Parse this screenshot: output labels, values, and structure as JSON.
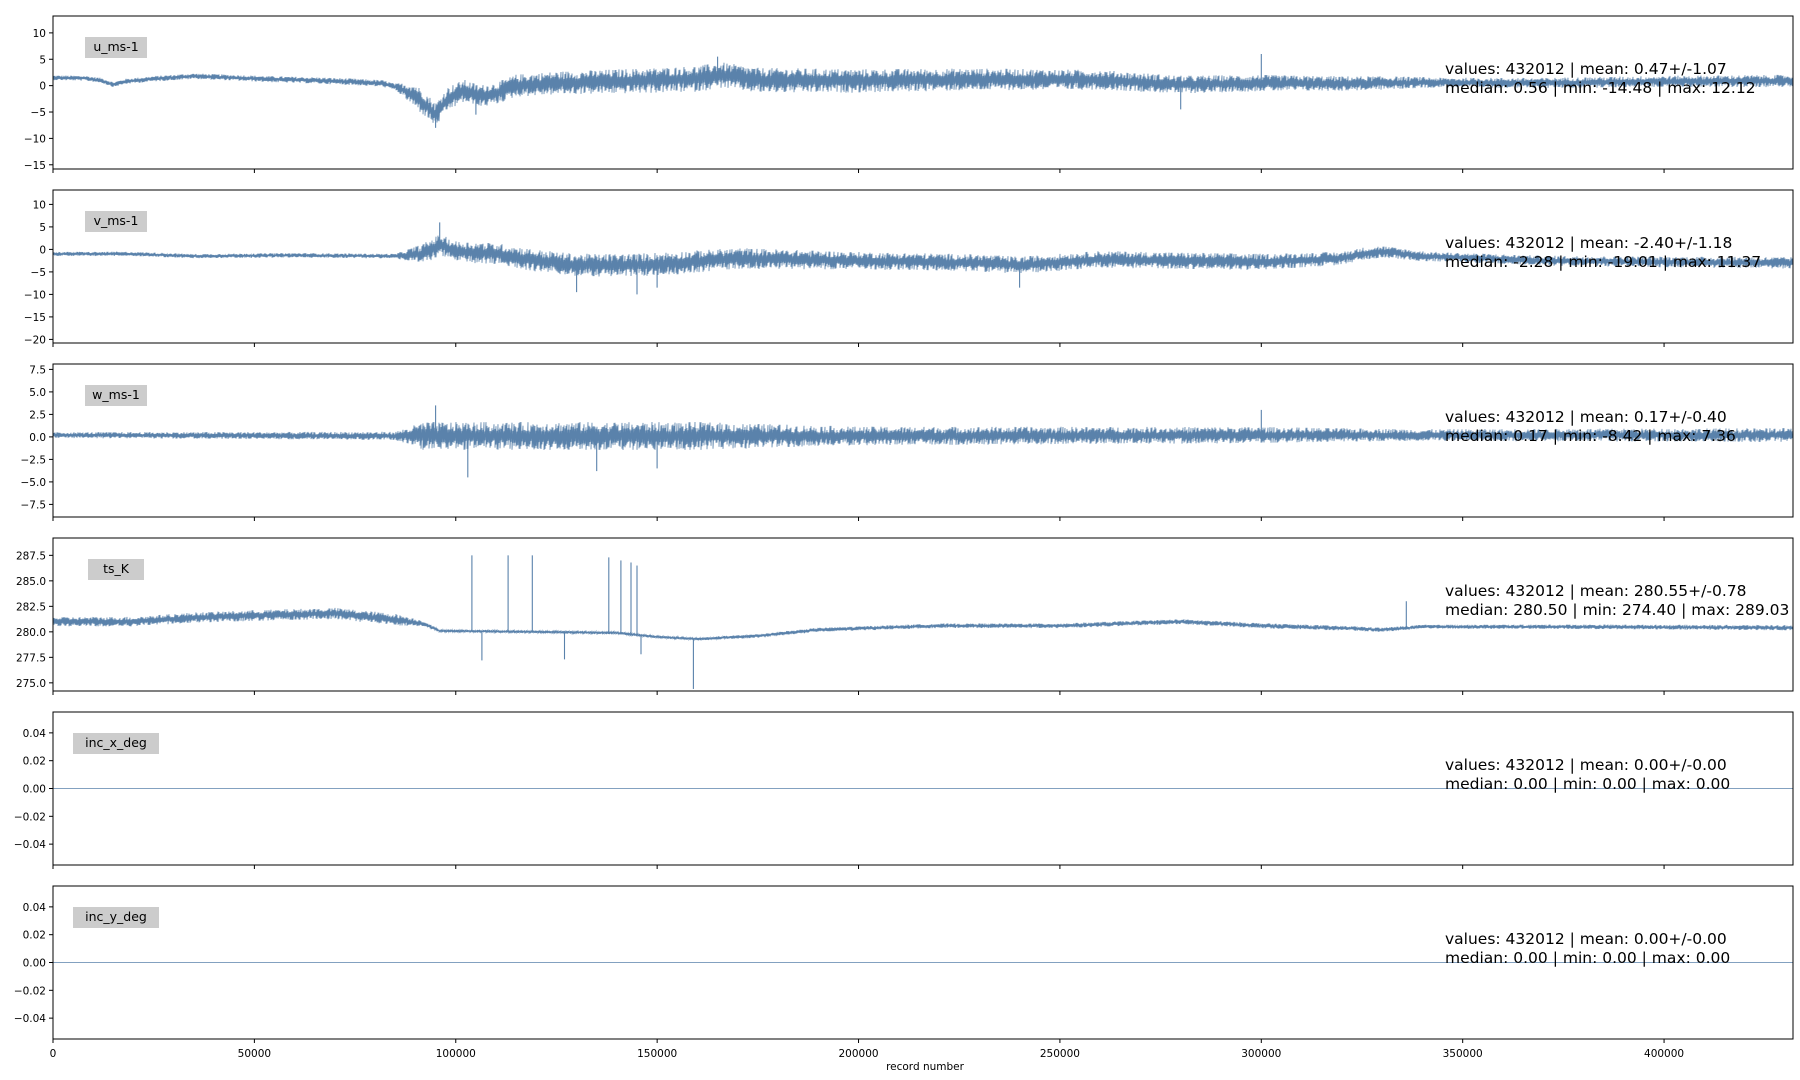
{
  "chart_data": {
    "type": "line",
    "xlabel": "record number",
    "xlim": [
      0,
      432012
    ],
    "x_ticks": [
      0,
      50000,
      100000,
      150000,
      200000,
      250000,
      300000,
      350000,
      400000
    ],
    "line_color": "#5a82ab",
    "label_box_color": "#cccccc",
    "panels": [
      {
        "name": "u_ms-1",
        "ylim": [
          -15.8,
          13.2
        ],
        "y_ticks": [
          10,
          5,
          0,
          -5,
          -10,
          -15
        ],
        "y_tick_labels": [
          "10",
          "5",
          "0",
          "−5",
          "−10",
          "−15"
        ],
        "stats_line1": "values: 432012 | mean: 0.47+/-1.07",
        "stats_line2": "median: 0.56 | min: -14.48 | max: 12.12",
        "series": [
          [
            0,
            1.5
          ],
          [
            8000,
            1.4
          ],
          [
            12000,
            1.0
          ],
          [
            15000,
            0.2
          ],
          [
            18000,
            0.8
          ],
          [
            25000,
            1.3
          ],
          [
            35000,
            1.8
          ],
          [
            45000,
            1.5
          ],
          [
            55000,
            1.2
          ],
          [
            65000,
            1.0
          ],
          [
            75000,
            0.7
          ],
          [
            82000,
            0.4
          ],
          [
            86000,
            -0.5
          ],
          [
            90000,
            -2.0
          ],
          [
            93000,
            -4.0
          ],
          [
            95000,
            -5.5
          ],
          [
            98000,
            -2.5
          ],
          [
            102000,
            -1.0
          ],
          [
            106000,
            -2.0
          ],
          [
            110000,
            -1.5
          ],
          [
            115000,
            0.0
          ],
          [
            125000,
            0.5
          ],
          [
            140000,
            0.8
          ],
          [
            150000,
            1.0
          ],
          [
            160000,
            1.3
          ],
          [
            166000,
            2.0
          ],
          [
            175000,
            1.0
          ],
          [
            200000,
            0.9
          ],
          [
            230000,
            1.2
          ],
          [
            260000,
            1.1
          ],
          [
            280000,
            0.2
          ],
          [
            300000,
            0.5
          ],
          [
            320000,
            0.4
          ],
          [
            340000,
            0.6
          ],
          [
            370000,
            0.5
          ],
          [
            400000,
            0.8
          ],
          [
            432012,
            0.9
          ]
        ],
        "noise": [
          [
            0,
            0.35
          ],
          [
            85000,
            0.5
          ],
          [
            90000,
            1.8
          ],
          [
            110000,
            1.6
          ],
          [
            160000,
            1.9
          ],
          [
            250000,
            1.5
          ],
          [
            330000,
            1.0
          ],
          [
            345000,
            0.7
          ],
          [
            432012,
            0.9
          ]
        ],
        "spikes": [
          [
            95000,
            -8.0
          ],
          [
            105000,
            -5.5
          ],
          [
            165000,
            5.5
          ],
          [
            280000,
            -4.5
          ],
          [
            300000,
            6.0
          ]
        ]
      },
      {
        "name": "v_ms-1",
        "ylim": [
          -20.8,
          13.2
        ],
        "y_ticks": [
          10,
          5,
          0,
          -5,
          -10,
          -15,
          -20
        ],
        "y_tick_labels": [
          "10",
          "5",
          "0",
          "−5",
          "−10",
          "−15",
          "−20"
        ],
        "stats_line1": "values: 432012 | mean: -2.40+/-1.18",
        "stats_line2": "median: -2.28 | min: -19.01 | max: 11.37",
        "series": [
          [
            0,
            -1.0
          ],
          [
            20000,
            -1.0
          ],
          [
            35000,
            -1.5
          ],
          [
            60000,
            -1.3
          ],
          [
            85000,
            -1.5
          ],
          [
            92000,
            -1.0
          ],
          [
            96000,
            1.0
          ],
          [
            100000,
            -0.5
          ],
          [
            110000,
            -1.0
          ],
          [
            120000,
            -2.5
          ],
          [
            130000,
            -3.5
          ],
          [
            145000,
            -3.5
          ],
          [
            155000,
            -3.0
          ],
          [
            170000,
            -2.0
          ],
          [
            200000,
            -2.5
          ],
          [
            230000,
            -3.0
          ],
          [
            240000,
            -3.5
          ],
          [
            260000,
            -2.2
          ],
          [
            300000,
            -2.8
          ],
          [
            320000,
            -2.0
          ],
          [
            325000,
            -1.0
          ],
          [
            330000,
            -0.5
          ],
          [
            340000,
            -1.5
          ],
          [
            370000,
            -2.5
          ],
          [
            400000,
            -2.8
          ],
          [
            432012,
            -3.0
          ]
        ],
        "noise": [
          [
            0,
            0.35
          ],
          [
            85000,
            0.4
          ],
          [
            92000,
            1.8
          ],
          [
            150000,
            2.0
          ],
          [
            200000,
            1.5
          ],
          [
            300000,
            1.4
          ],
          [
            330000,
            1.0
          ],
          [
            345000,
            0.8
          ],
          [
            432012,
            1.0
          ]
        ],
        "spikes": [
          [
            96000,
            6.0
          ],
          [
            130000,
            -9.5
          ],
          [
            145000,
            -10.0
          ],
          [
            150000,
            -8.5
          ],
          [
            240000,
            -8.5
          ]
        ]
      },
      {
        "name": "w_ms-1",
        "ylim": [
          -8.9,
          8.1
        ],
        "y_ticks": [
          7.5,
          5.0,
          2.5,
          0.0,
          -2.5,
          -5.0,
          -7.5
        ],
        "y_tick_labels": [
          "7.5",
          "5.0",
          "2.5",
          "0.0",
          "−2.5",
          "−5.0",
          "−7.5"
        ],
        "stats_line1": "values: 432012 | mean: 0.17+/-0.40",
        "stats_line2": "median: 0.17 | min: -8.42 | max: 7.36",
        "series": [
          [
            0,
            0.2
          ],
          [
            100000,
            0.1
          ],
          [
            200000,
            0.1
          ],
          [
            300000,
            0.2
          ],
          [
            432012,
            0.2
          ]
        ],
        "noise": [
          [
            0,
            0.25
          ],
          [
            85000,
            0.35
          ],
          [
            92000,
            1.2
          ],
          [
            160000,
            1.2
          ],
          [
            200000,
            0.8
          ],
          [
            300000,
            0.7
          ],
          [
            340000,
            0.5
          ],
          [
            432012,
            0.6
          ]
        ],
        "spikes": [
          [
            95000,
            3.5
          ],
          [
            103000,
            -4.5
          ],
          [
            135000,
            -3.8
          ],
          [
            150000,
            -3.5
          ],
          [
            300000,
            3.0
          ]
        ]
      },
      {
        "name": "ts_K",
        "ylim": [
          274.2,
          289.2
        ],
        "y_ticks": [
          287.5,
          285.0,
          282.5,
          280.0,
          277.5,
          275.0
        ],
        "y_tick_labels": [
          "287.5",
          "285.0",
          "282.5",
          "280.0",
          "277.5",
          "275.0"
        ],
        "stats_line1": "values: 432012 | mean: 280.55+/-0.78",
        "stats_line2": "median: 280.50 | min: 274.40 | max: 289.03",
        "series": [
          [
            0,
            281.0
          ],
          [
            20000,
            281.0
          ],
          [
            35000,
            281.4
          ],
          [
            50000,
            281.6
          ],
          [
            70000,
            281.8
          ],
          [
            85000,
            281.2
          ],
          [
            92000,
            280.8
          ],
          [
            96000,
            280.1
          ],
          [
            120000,
            280.0
          ],
          [
            140000,
            279.9
          ],
          [
            150000,
            279.5
          ],
          [
            160000,
            279.3
          ],
          [
            175000,
            279.6
          ],
          [
            190000,
            280.2
          ],
          [
            220000,
            280.6
          ],
          [
            250000,
            280.6
          ],
          [
            280000,
            281.0
          ],
          [
            300000,
            280.6
          ],
          [
            325000,
            280.3
          ],
          [
            330000,
            280.2
          ],
          [
            340000,
            280.5
          ],
          [
            380000,
            280.5
          ],
          [
            432012,
            280.4
          ]
        ],
        "noise": [
          [
            0,
            0.35
          ],
          [
            85000,
            0.45
          ],
          [
            96000,
            0.1
          ],
          [
            160000,
            0.1
          ],
          [
            175000,
            0.15
          ],
          [
            300000,
            0.2
          ],
          [
            340000,
            0.15
          ],
          [
            432012,
            0.2
          ]
        ],
        "spikes": [
          [
            104000,
            287.5
          ],
          [
            106500,
            277.2
          ],
          [
            113000,
            287.5
          ],
          [
            119000,
            287.5
          ],
          [
            127000,
            277.3
          ],
          [
            138000,
            287.3
          ],
          [
            141000,
            287.0
          ],
          [
            143500,
            286.8
          ],
          [
            145000,
            286.5
          ],
          [
            146000,
            277.8
          ],
          [
            159000,
            274.4
          ],
          [
            336000,
            283.0
          ]
        ]
      },
      {
        "name": "inc_x_deg",
        "ylim": [
          -0.055,
          0.055
        ],
        "y_ticks": [
          0.04,
          0.02,
          0.0,
          -0.02,
          -0.04
        ],
        "y_tick_labels": [
          "0.04",
          "0.02",
          "0.00",
          "−0.02",
          "−0.04"
        ],
        "stats_line1": "values: 432012 | mean: 0.00+/-0.00",
        "stats_line2": "median: 0.00 | min: 0.00 | max: 0.00",
        "series": [
          [
            0,
            0.0
          ],
          [
            432012,
            0.0
          ]
        ],
        "noise": [
          [
            0,
            0
          ],
          [
            432012,
            0
          ]
        ],
        "spikes": []
      },
      {
        "name": "inc_y_deg",
        "ylim": [
          -0.055,
          0.055
        ],
        "y_ticks": [
          0.04,
          0.02,
          0.0,
          -0.02,
          -0.04
        ],
        "y_tick_labels": [
          "0.04",
          "0.02",
          "0.00",
          "−0.02",
          "−0.04"
        ],
        "stats_line1": "values: 432012 | mean: 0.00+/-0.00",
        "stats_line2": "median: 0.00 | min: 0.00 | max: 0.00",
        "series": [
          [
            0,
            0.0
          ],
          [
            432012,
            0.0
          ]
        ],
        "noise": [
          [
            0,
            0
          ],
          [
            432012,
            0
          ]
        ],
        "spikes": []
      }
    ]
  }
}
